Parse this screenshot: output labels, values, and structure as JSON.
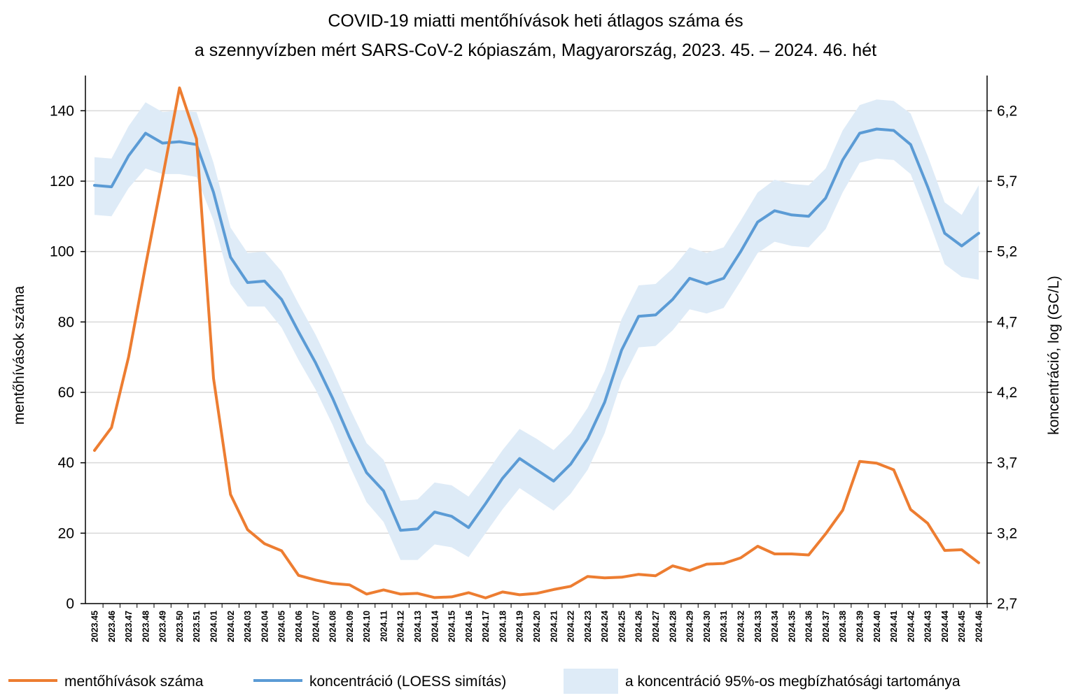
{
  "chart_data": {
    "type": "line",
    "title": [
      "COVID-19 miatti mentőhívások heti átlagos száma és",
      "a szennyvízben mért SARS-CoV-2 kópiaszám, Magyarország, 2023. 45. – 2024. 46. hét"
    ],
    "ylabel_left": "mentőhívások száma",
    "ylabel_right": "koncentráció, log (GC/L)",
    "ylim_left": [
      0,
      150
    ],
    "yticks_left": [
      "0",
      "20",
      "40",
      "60",
      "80",
      "100",
      "120",
      "140"
    ],
    "ylim_right": [
      2.7,
      6.45
    ],
    "yticks_right": [
      "2,7",
      "3,2",
      "3,7",
      "4,2",
      "4,7",
      "5,2",
      "5,7",
      "6,2"
    ],
    "categories": [
      "2023.45",
      "2023.46",
      "2023.47",
      "2023.48",
      "2023.49",
      "2023.50",
      "2023.51",
      "2024.01",
      "2024.02",
      "2024.03",
      "2024.04",
      "2024.05",
      "2024.06",
      "2024.07",
      "2024.08",
      "2024.09",
      "2024.10",
      "2024.11",
      "2024.12",
      "2024.13",
      "2024.14",
      "2024.15",
      "2024.16",
      "2024.17",
      "2024.18",
      "2024.19",
      "2024.20",
      "2024.21",
      "2024.22",
      "2024.23",
      "2024.24",
      "2024.25",
      "2024.26",
      "2024.27",
      "2024.28",
      "2024.29",
      "2024.30",
      "2024.31",
      "2024.32",
      "2024.33",
      "2024.34",
      "2024.35",
      "2024.36",
      "2024.37",
      "2024.38",
      "2024.39",
      "2024.40",
      "2024.41",
      "2024.42",
      "2024.43",
      "2024.44",
      "2024.45",
      "2024.46"
    ],
    "series": [
      {
        "name": "mentőhívások száma",
        "axis": "left",
        "color": "#ED7D31",
        "values": [
          43.5,
          50,
          70,
          96,
          121,
          146.5,
          132,
          64,
          31,
          21,
          17,
          15,
          8,
          6.7,
          5.7,
          5.3,
          2.7,
          3.9,
          2.7,
          2.9,
          1.7,
          1.9,
          3.1,
          1.6,
          3.3,
          2.5,
          2.9,
          4,
          4.9,
          7.7,
          7.3,
          7.5,
          8.3,
          7.9,
          10.7,
          9.4,
          11.2,
          11.4,
          13,
          16.3,
          14.1,
          14.1,
          13.8,
          19.8,
          26.5,
          40.4,
          39.9,
          38,
          26.7,
          22.8,
          15.1,
          15.3,
          11.6
        ]
      },
      {
        "name": "koncentráció (LOESS simítás)",
        "axis": "right",
        "color": "#5B9BD5",
        "values": [
          5.67,
          5.66,
          5.88,
          6.04,
          5.97,
          5.98,
          5.96,
          5.62,
          5.16,
          4.98,
          4.99,
          4.86,
          4.63,
          4.41,
          4.16,
          3.88,
          3.63,
          3.5,
          3.22,
          3.23,
          3.35,
          3.32,
          3.24,
          3.41,
          3.59,
          3.73,
          3.65,
          3.57,
          3.69,
          3.87,
          4.13,
          4.5,
          4.74,
          4.75,
          4.86,
          5.01,
          4.97,
          5.01,
          5.2,
          5.41,
          5.49,
          5.46,
          5.45,
          5.58,
          5.85,
          6.04,
          6.07,
          6.06,
          5.96,
          5.66,
          5.33,
          5.24,
          5.33
        ]
      },
      {
        "name": "a koncentráció 95%-os megbízhatósági tartománya",
        "axis": "right",
        "color": "#DEEBF7",
        "lower": [
          5.46,
          5.45,
          5.65,
          5.79,
          5.75,
          5.75,
          5.73,
          5.42,
          4.97,
          4.81,
          4.81,
          4.66,
          4.43,
          4.22,
          3.97,
          3.68,
          3.42,
          3.28,
          3.01,
          3.01,
          3.12,
          3.1,
          3.03,
          3.2,
          3.37,
          3.52,
          3.44,
          3.36,
          3.48,
          3.65,
          3.91,
          4.28,
          4.52,
          4.53,
          4.64,
          4.79,
          4.76,
          4.8,
          4.99,
          5.19,
          5.27,
          5.24,
          5.23,
          5.36,
          5.62,
          5.83,
          5.86,
          5.85,
          5.75,
          5.44,
          5.11,
          5.02,
          5.0
        ],
        "upper": [
          5.87,
          5.86,
          6.09,
          6.26,
          6.19,
          6.2,
          6.19,
          5.83,
          5.37,
          5.19,
          5.2,
          5.06,
          4.83,
          4.61,
          4.36,
          4.09,
          3.84,
          3.72,
          3.43,
          3.44,
          3.56,
          3.54,
          3.46,
          3.62,
          3.79,
          3.94,
          3.87,
          3.79,
          3.91,
          4.09,
          4.35,
          4.72,
          4.96,
          4.97,
          5.08,
          5.23,
          5.19,
          5.23,
          5.42,
          5.62,
          5.71,
          5.68,
          5.67,
          5.79,
          6.06,
          6.24,
          6.28,
          6.27,
          6.18,
          5.88,
          5.55,
          5.46,
          5.67
        ]
      }
    ],
    "grid": "horizontal",
    "legend_position": "bottom"
  }
}
